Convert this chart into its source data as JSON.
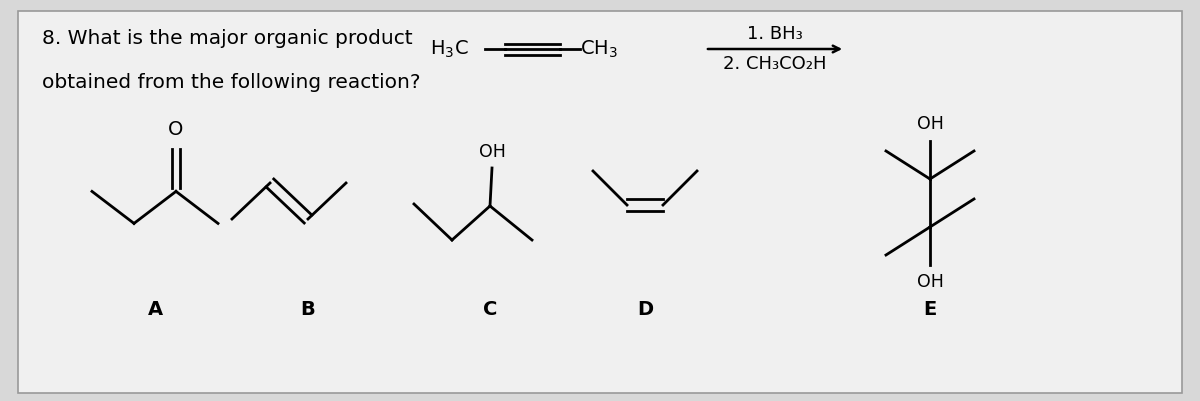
{
  "bg_color": "#d8d8d8",
  "card_bg": "#f0f0f0",
  "text_color": "#000000",
  "question_line1": "8. What is the major organic product",
  "question_line2": "obtained from the following reaction?",
  "reagent_line1": "1. BH₃",
  "reagent_line2": "2. CH₃CO₂H",
  "labels": [
    "A",
    "B",
    "C",
    "D",
    "E"
  ],
  "lw": 2.0,
  "font_size_question": 14.5,
  "font_size_label": 14,
  "font_size_chem": 13
}
